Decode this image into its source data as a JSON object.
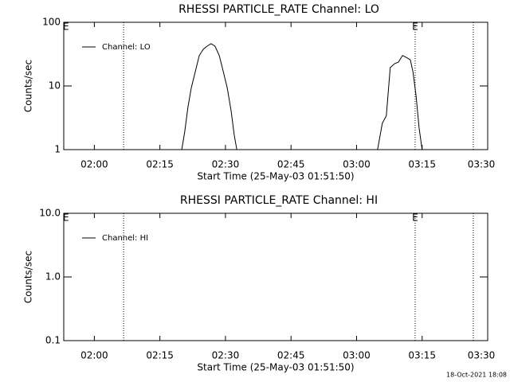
{
  "chart_data": [
    {
      "type": "line",
      "title": "RHESSI PARTICLE_RATE Channel: LO",
      "xlabel": "Start Time (25-May-03 01:51:50)",
      "ylabel": "Counts/sec",
      "xlim": [
        113,
        210
      ],
      "xticks": [
        {
          "value": 120,
          "label": "02:00"
        },
        {
          "value": 135,
          "label": "02:15"
        },
        {
          "value": 150,
          "label": "02:30"
        },
        {
          "value": 165,
          "label": "02:45"
        },
        {
          "value": 180,
          "label": "03:00"
        },
        {
          "value": 195,
          "label": "03:15"
        },
        {
          "value": 210,
          "label": "03:30"
        }
      ],
      "ylim": [
        1,
        100
      ],
      "yticks": [
        1,
        10,
        100
      ],
      "log_y": true,
      "vlines": [
        126.7,
        193.4,
        206.7
      ],
      "annotations": [
        {
          "text": "E",
          "x": 113.5
        },
        {
          "text": "E",
          "x": 193.4
        }
      ],
      "series": [
        {
          "name": "Channel: LO",
          "color": "#000000",
          "x": [
            140.0,
            140.7,
            141.4,
            142.2,
            143.1,
            144.0,
            144.9,
            145.8,
            146.7,
            147.6,
            148.6,
            149.5,
            150.4,
            151.3,
            152.0,
            152.6,
            168.0,
            184.8,
            185.9,
            186.8,
            187.7,
            188.7,
            189.6,
            190.5,
            191.4,
            192.3,
            192.9,
            193.6,
            194.3,
            195.0
          ],
          "values": [
            1,
            1.94,
            4.6,
            9.4,
            16.8,
            29.9,
            37.6,
            42.2,
            46,
            42.2,
            29.9,
            16.8,
            9.4,
            4.0,
            1.7,
            1,
            null,
            1,
            2.6,
            3.4,
            19.4,
            22.4,
            23.7,
            30,
            28,
            25.7,
            16.8,
            7.1,
            2.2,
            1
          ]
        }
      ]
    },
    {
      "type": "line",
      "title": "RHESSI PARTICLE_RATE Channel: HI",
      "xlabel": "Start Time (25-May-03 01:51:50)",
      "ylabel": "Counts/sec",
      "xlim": [
        113,
        210
      ],
      "xticks": [
        {
          "value": 120,
          "label": "02:00"
        },
        {
          "value": 135,
          "label": "02:15"
        },
        {
          "value": 150,
          "label": "02:30"
        },
        {
          "value": 165,
          "label": "02:45"
        },
        {
          "value": 180,
          "label": "03:00"
        },
        {
          "value": 195,
          "label": "03:15"
        },
        {
          "value": 210,
          "label": "03:30"
        }
      ],
      "ylim": [
        0.1,
        10
      ],
      "yticks": [
        0.1,
        {
          "value": 1,
          "label": "1.0"
        },
        {
          "value": 10,
          "label": "10.0"
        }
      ],
      "log_y": true,
      "vlines": [
        126.7,
        193.4,
        206.7
      ],
      "annotations": [
        {
          "text": "E",
          "x": 113.5
        },
        {
          "text": "E",
          "x": 193.4
        }
      ],
      "series": [
        {
          "name": "Channel: HI",
          "color": "#000000",
          "x": [],
          "values": []
        }
      ]
    }
  ],
  "footer": "18-Oct-2021 18:08"
}
